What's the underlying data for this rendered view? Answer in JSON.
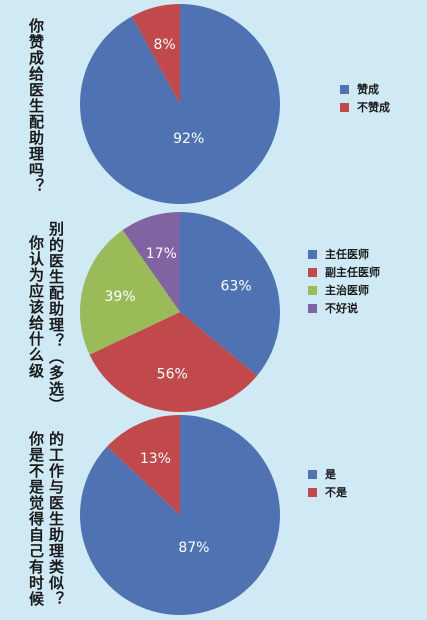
{
  "colors": {
    "blue": "#4f73b2",
    "red": "#c2494b",
    "green": "#9bbb59",
    "purple": "#8064a2",
    "background": "#cfe9f5"
  },
  "chart_data": [
    {
      "type": "pie",
      "question": "你赞成给医生配助理吗？",
      "slices": [
        {
          "name": "赞成",
          "value": 92,
          "label": "92%",
          "color": "#4f73b2"
        },
        {
          "name": "不赞成",
          "value": 8,
          "label": "8%",
          "color": "#c2494b"
        }
      ]
    },
    {
      "type": "pie",
      "question": "你认为应该给什么级别的医生配助理？（多选）",
      "slices": [
        {
          "name": "主任医师",
          "value": 63,
          "label": "63%",
          "color": "#4f73b2"
        },
        {
          "name": "副主任医师",
          "value": 56,
          "label": "56%",
          "color": "#c2494b"
        },
        {
          "name": "主治医师",
          "value": 39,
          "label": "39%",
          "color": "#9bbb59"
        },
        {
          "name": "不好说",
          "value": 17,
          "label": "17%",
          "color": "#8064a2"
        }
      ]
    },
    {
      "type": "pie",
      "question": "你是不是觉得自己有时候的工作与医生助理类似？",
      "slices": [
        {
          "name": "是",
          "value": 87,
          "label": "87%",
          "color": "#4f73b2"
        },
        {
          "name": "不是",
          "value": 13,
          "label": "13%",
          "color": "#c2494b"
        }
      ]
    }
  ],
  "questions": {
    "q1": "你赞成给医生配助理吗？",
    "q2_col1": "你认为应该给什么级",
    "q2_col2": "别的医生配助理？（多选）",
    "q3_col1": "你是不是觉得自己有时候",
    "q3_col2": "的工作与医生助理类似？"
  },
  "legends": {
    "l1": [
      "赞成",
      "不赞成"
    ],
    "l2": [
      "主任医师",
      "副主任医师",
      "主治医师",
      "不好说"
    ],
    "l3": [
      "是",
      "不是"
    ]
  }
}
